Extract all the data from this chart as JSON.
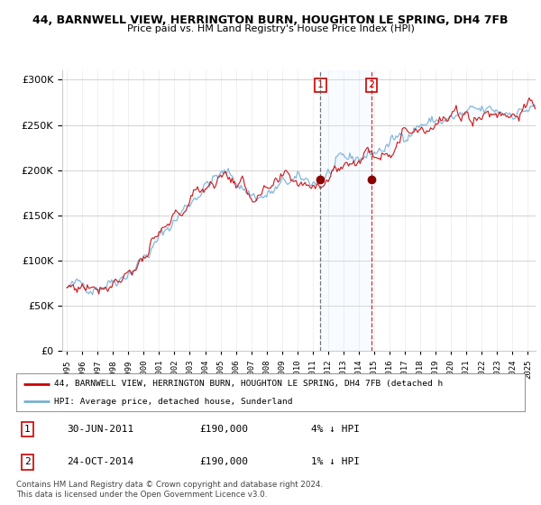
{
  "title": "44, BARNWELL VIEW, HERRINGTON BURN, HOUGHTON LE SPRING, DH4 7FB",
  "subtitle": "Price paid vs. HM Land Registry's House Price Index (HPI)",
  "legend_line1": "44, BARNWELL VIEW, HERRINGTON BURN, HOUGHTON LE SPRING, DH4 7FB (detached h",
  "legend_line2": "HPI: Average price, detached house, Sunderland",
  "note1": "Contains HM Land Registry data © Crown copyright and database right 2024.",
  "note2": "This data is licensed under the Open Government Licence v3.0.",
  "table": [
    {
      "num": "1",
      "date": "30-JUN-2011",
      "price": "£190,000",
      "hpi": "4% ↓ HPI"
    },
    {
      "num": "2",
      "date": "24-OCT-2014",
      "price": "£190,000",
      "hpi": "1% ↓ HPI"
    }
  ],
  "marker1_x": 2011.5,
  "marker2_x": 2014.83,
  "marker1_y": 190000,
  "marker2_y": 190000,
  "red_color": "#cc0000",
  "blue_color": "#7ab0d4",
  "shade_color": "#ddeeff",
  "ylim": [
    0,
    310000
  ],
  "yticks": [
    0,
    50000,
    100000,
    150000,
    200000,
    250000,
    300000
  ],
  "xlim_start": 1994.7,
  "xlim_end": 2025.5,
  "background": "#ffffff",
  "grid_color": "#cccccc",
  "hpi_monthly": {
    "start_year": 1995,
    "start_month": 1,
    "end_year": 2025,
    "end_month": 6,
    "base_values": [
      70000,
      71000,
      72000,
      73000,
      75000,
      77000,
      80000,
      84000,
      89000,
      95000,
      102000,
      110000,
      120000,
      131000,
      142000,
      152000,
      162000,
      172000,
      182000,
      188000,
      192000,
      195000,
      191000,
      184000,
      176000,
      172000,
      171000,
      174000,
      179000,
      185000,
      187000,
      186000,
      186000,
      188000,
      193000,
      199000,
      204000,
      208000,
      212000,
      215000,
      218000,
      221000,
      225000,
      230000,
      236000,
      243000,
      249000,
      252000,
      253000,
      254000,
      255000,
      256000,
      258000,
      260000,
      262000,
      263000,
      264000,
      264000,
      265000,
      266000,
      267000,
      268000
    ]
  }
}
